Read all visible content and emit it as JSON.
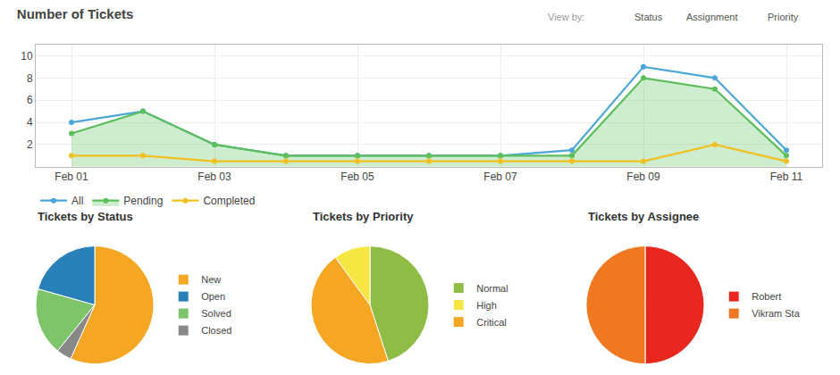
{
  "chart_data": [
    {
      "type": "line",
      "title": "Number of Tickets",
      "annotations": [
        "View by:",
        "Status",
        "Assignment",
        "Priority"
      ],
      "categories": [
        "Feb 01",
        null,
        "Feb 03",
        null,
        "Feb 05",
        null,
        "Feb 07",
        null,
        "Feb 09",
        null,
        "Feb 11"
      ],
      "series": [
        {
          "name": "All",
          "color": "#4da6d8",
          "values": [
            4,
            5,
            2,
            1,
            1,
            1,
            1,
            1.5,
            9,
            8,
            1.5
          ]
        },
        {
          "name": "Pending",
          "color": "#5cbf5c",
          "values": [
            3,
            5,
            2,
            1,
            1,
            1,
            1,
            1,
            8,
            7,
            1
          ]
        },
        {
          "name": "Completed",
          "color": "#f0c020",
          "values": [
            1,
            1,
            0.5,
            0.5,
            0.5,
            0.5,
            0.5,
            0.5,
            0.5,
            2,
            0.5
          ]
        }
      ],
      "ylim": [
        0,
        11
      ],
      "yticks": [
        2,
        4,
        6,
        8,
        10
      ],
      "grid": true,
      "legend": "bottom"
    },
    {
      "type": "pie",
      "title": "Tickets by Status",
      "categories": [
        "New",
        "Open",
        "Solved",
        "Closed"
      ],
      "values": [
        55,
        20,
        18,
        4
      ],
      "colors": [
        "#f5a623",
        "#2980b9",
        "#7dc46a",
        "#888888"
      ],
      "legend": "right"
    },
    {
      "type": "pie",
      "title": "Tickets by Priority",
      "categories": [
        "Normal",
        "High",
        "Critical"
      ],
      "values": [
        45,
        10,
        45
      ],
      "colors": [
        "#8fbc45",
        "#f5e642",
        "#f5a623"
      ],
      "legend": "right"
    },
    {
      "type": "pie",
      "title": "Tickets by Assignee",
      "categories": [
        "Robert",
        "Vikram Sta"
      ],
      "values": [
        50,
        50
      ],
      "colors": [
        "#e8281e",
        "#f07820"
      ],
      "legend": "right"
    }
  ]
}
